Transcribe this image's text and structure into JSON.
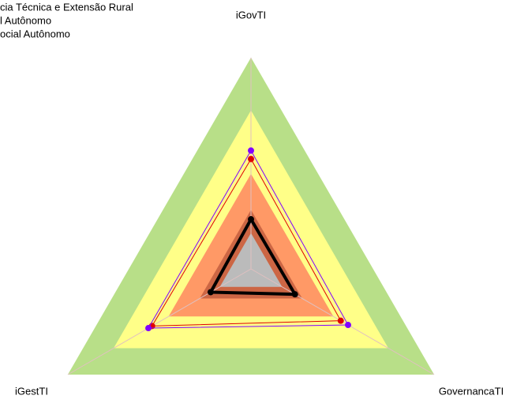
{
  "chart_data": {
    "type": "radar",
    "axes": [
      "iGovTI",
      "GovernancaTI",
      "iGestTI"
    ],
    "ylim": [
      0,
      1
    ],
    "bands": [
      {
        "value": 1.0,
        "color": "#b8df88"
      },
      {
        "value": 0.75,
        "color": "#ffff88"
      },
      {
        "value": 0.45,
        "color": "#ff9966"
      },
      {
        "value": 0.28,
        "color": "#cc6644"
      },
      {
        "value": 0.17,
        "color": "#bbbbbb"
      }
    ],
    "series": [
      {
        "name": "cia Técnica e Extensão Rural",
        "color": "#000000",
        "values": [
          0.235,
          0.24,
          0.22
        ]
      },
      {
        "name": "l Autônomo",
        "color": "#e00000",
        "values": [
          0.52,
          0.49,
          0.54
        ]
      },
      {
        "name": "ocial Autônomo",
        "color": "#8000ff",
        "values": [
          0.56,
          0.53,
          0.56
        ]
      }
    ]
  }
}
